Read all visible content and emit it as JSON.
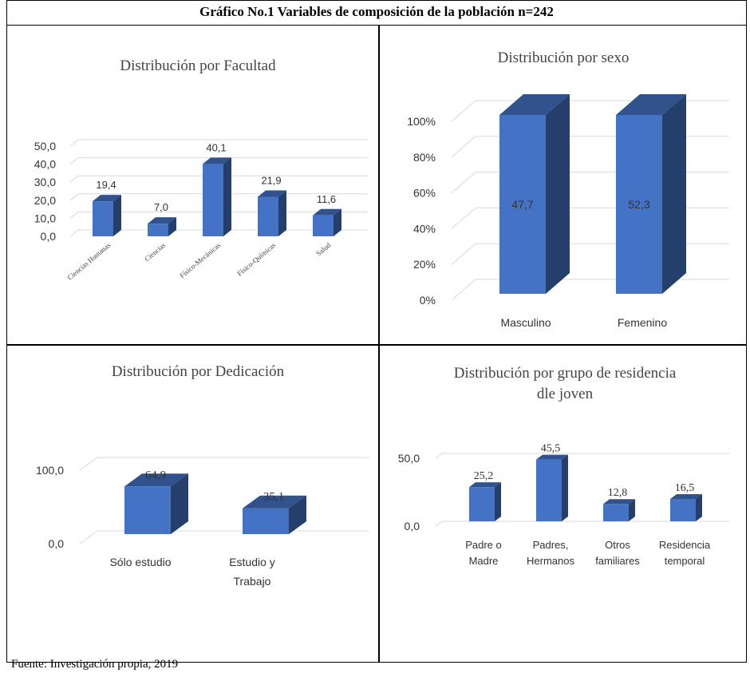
{
  "figure": {
    "title": "Gráfico No.1 Variables de composición de la población n=242",
    "footnote": "Fuente: Investigación propia, 2019"
  },
  "chart_data": [
    {
      "id": "facultad",
      "type": "bar",
      "title": "Distribución por Facultad",
      "categories": [
        "Ciencias Humanas",
        "Ciencias",
        "Físico-Mecánicas",
        "Físico-Químicas",
        "Salud"
      ],
      "values": [
        19.4,
        7.0,
        40.1,
        21.9,
        11.6
      ],
      "value_labels": [
        "19,4",
        "7,0",
        "40,1",
        "21,9",
        "11,6"
      ],
      "y_ticks": [
        "0,0",
        "10,0",
        "20,0",
        "30,0",
        "40,0",
        "50,0"
      ],
      "ylim": [
        0,
        50
      ],
      "grid": true,
      "color": "#4472C4"
    },
    {
      "id": "sexo",
      "type": "bar",
      "title": "Distribución por sexo",
      "categories": [
        "Masculino",
        "Femenino"
      ],
      "values": [
        47.7,
        52.3
      ],
      "value_labels": [
        "47,7",
        "52,3"
      ],
      "stacked_percent": true,
      "y_ticks": [
        "0%",
        "20%",
        "40%",
        "60%",
        "80%",
        "100%"
      ],
      "ylim": [
        0,
        100
      ],
      "grid": true,
      "color": "#4472C4"
    },
    {
      "id": "dedicacion",
      "type": "bar",
      "title": "Distribución por Dedicación",
      "categories": [
        "Sólo estudio",
        "Estudio y Trabajo"
      ],
      "values": [
        64.9,
        35.1
      ],
      "value_labels": [
        "64,9",
        "35,1"
      ],
      "y_ticks": [
        "0,0",
        "100,0"
      ],
      "ylim": [
        0,
        100
      ],
      "grid": true,
      "color": "#4472C4"
    },
    {
      "id": "residencia",
      "type": "bar",
      "title": "Distribución por grupo de residencia dle joven",
      "categories": [
        "Padre o Madre",
        "Padres, Hermanos",
        "Otros familiares",
        "Residencia temporal"
      ],
      "values": [
        25.2,
        45.5,
        12.8,
        16.5
      ],
      "value_labels": [
        "25,2",
        "45,5",
        "12,8",
        "16,5"
      ],
      "y_ticks": [
        "0,0",
        "50,0"
      ],
      "ylim": [
        0,
        50
      ],
      "grid": true,
      "color": "#4472C4"
    }
  ]
}
